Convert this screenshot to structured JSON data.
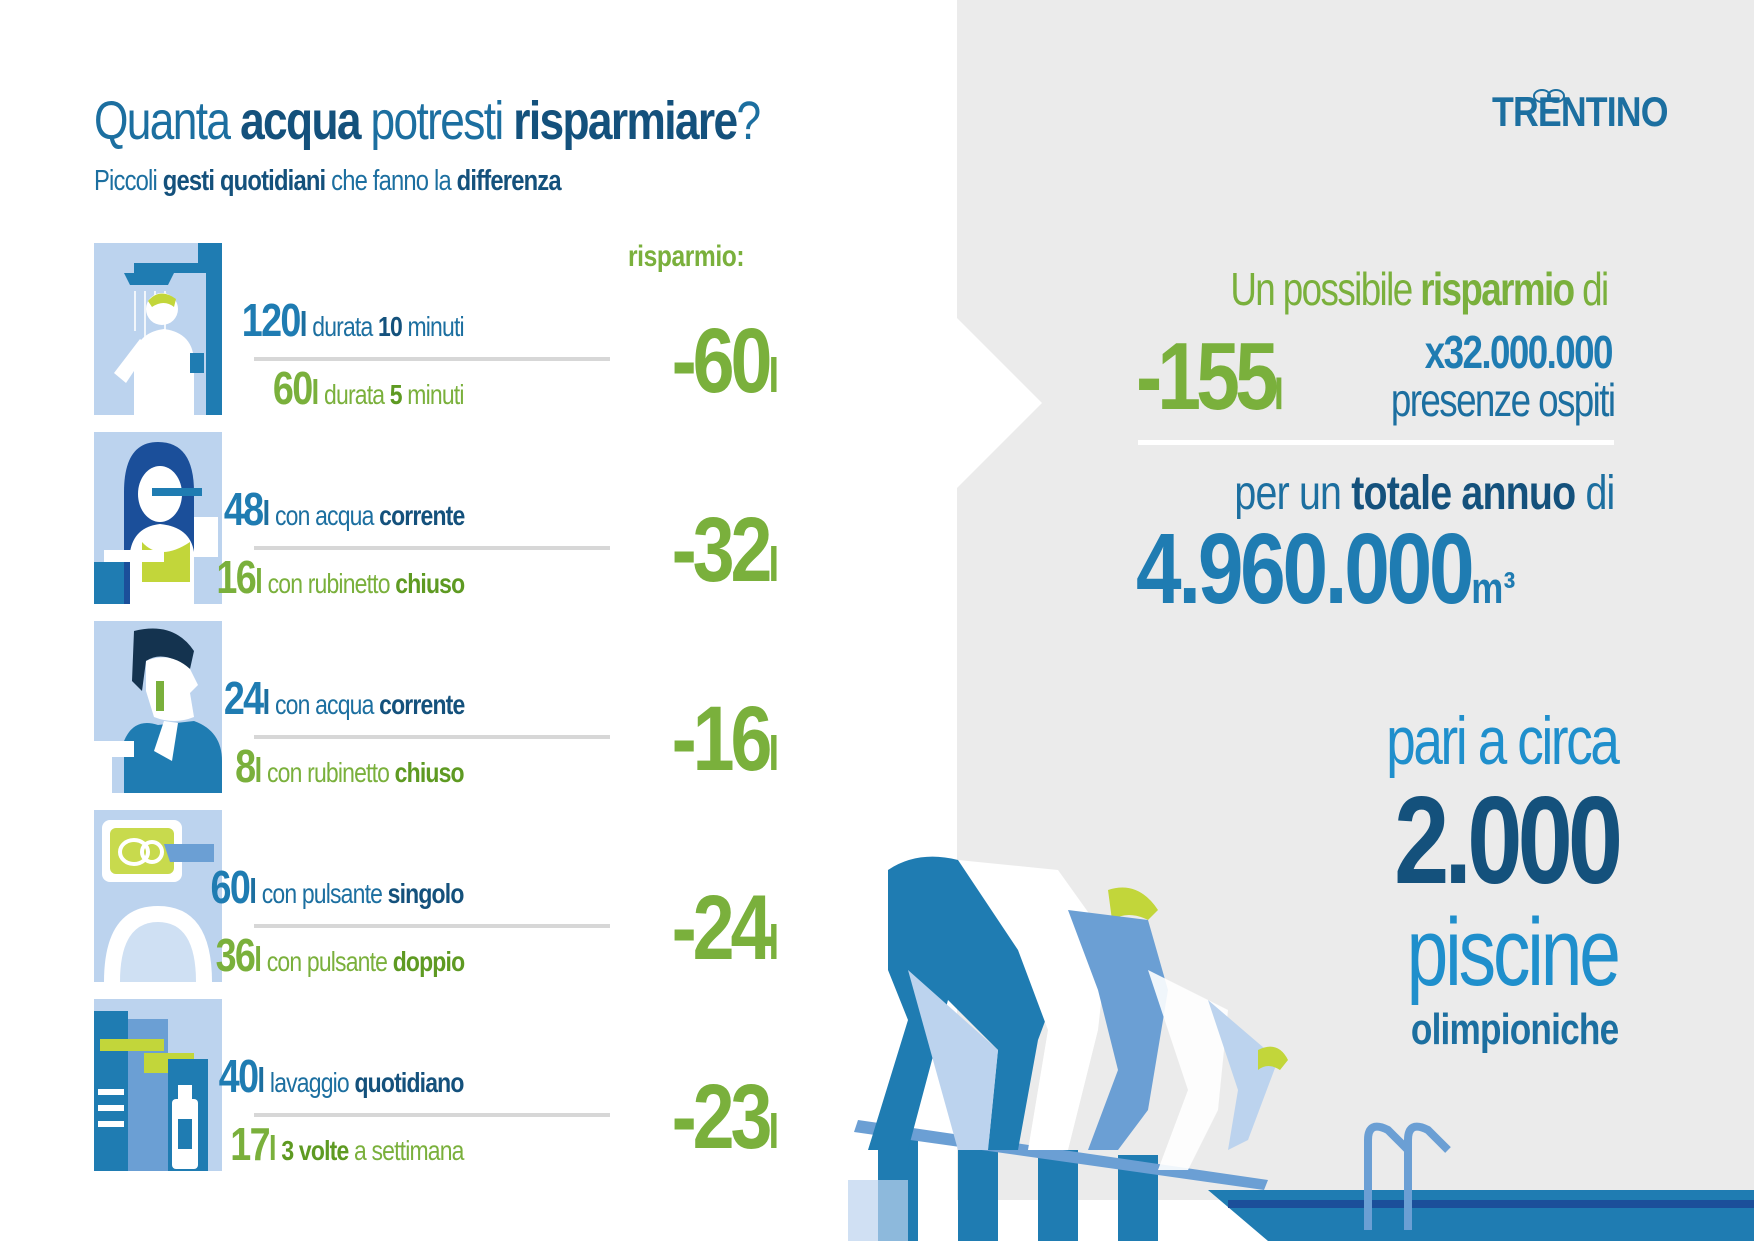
{
  "header": {
    "title_parts": [
      "Quanta ",
      "acqua",
      " potresti ",
      "risparmiare",
      "?"
    ],
    "subtitle_parts": [
      "Piccoli ",
      "gesti quotidiani",
      " che fanno la ",
      "differenza"
    ]
  },
  "savings_heading": "risparmio:",
  "unit": "l",
  "rows": [
    {
      "icon": "shower-icon",
      "a_num": "120",
      "a_text": "durata ",
      "a_bold": "10",
      "a_text2": " minuti",
      "b_num": "60",
      "b_text": "durata ",
      "b_bold": "5",
      "b_text2": " minuti",
      "saving": "-60"
    },
    {
      "icon": "toothbrush-icon",
      "a_num": "48",
      "a_text": "con acqua ",
      "a_bold": "corrente",
      "a_text2": "",
      "b_num": "16",
      "b_text": "con rubinetto ",
      "b_bold": "chiuso",
      "b_text2": "",
      "saving": "-32"
    },
    {
      "icon": "shaving-icon",
      "a_num": "24",
      "a_text": "con acqua ",
      "a_bold": "corrente",
      "a_text2": "",
      "b_num": "8",
      "b_text": "con rubinetto ",
      "b_bold": "chiuso",
      "b_text2": "",
      "saving": "-16"
    },
    {
      "icon": "toilet-flush-icon",
      "a_num": "60",
      "a_text": "con pulsante ",
      "a_bold": "singolo",
      "a_text2": "",
      "b_num": "36",
      "b_text": "con pulsante ",
      "b_bold": "doppio",
      "b_text2": "",
      "saving": "-24"
    },
    {
      "icon": "towels-icon",
      "a_num": "40",
      "a_text": "lavaggio ",
      "a_bold": "quotidiano",
      "a_text2": "",
      "b_num": "17",
      "b_text": "",
      "b_bold": "3 volte",
      "b_text2": " a settimana",
      "saving": "-23"
    }
  ],
  "logo": "TRENTINO",
  "summary": {
    "possible_parts": [
      "Un possibile ",
      "risparmio",
      " di"
    ],
    "big_saving": "-155",
    "multiplier": "x32.000.000",
    "presences": "presenze ospiti",
    "annual_parts": [
      "per un ",
      "totale annuo",
      " di"
    ],
    "total_value": "4.960.000",
    "total_unit": "m³",
    "circa": "pari a circa",
    "pools_count": "2.000",
    "pools_word": "piscine",
    "olympic": "olimpioniche"
  },
  "colors": {
    "dark_blue": "#14517c",
    "blue": "#1f7cb2",
    "light_blue": "#1f8fcc",
    "green": "#7ab03c",
    "panel_grey": "#ebebeb"
  }
}
